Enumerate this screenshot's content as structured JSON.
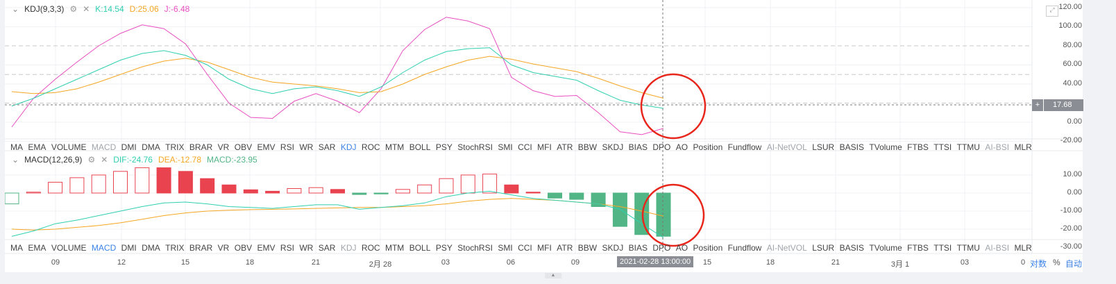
{
  "kdj": {
    "title": "KDJ(9,3,3)",
    "k": "K:14.54",
    "d": "D:25.06",
    "j": "J:-6.48",
    "current": "17.68",
    "y_ticks": [
      "120.00",
      "100.00",
      "80.00",
      "60.00",
      "40.00",
      "0.00",
      "-20.00"
    ],
    "K": [
      17,
      25,
      35,
      45,
      55,
      65,
      72,
      75,
      70,
      60,
      45,
      35,
      30,
      35,
      37,
      33,
      27,
      37,
      52,
      65,
      74,
      77,
      78,
      60,
      52,
      48,
      44,
      33,
      23,
      18,
      14.54
    ],
    "D": [
      32,
      30,
      31,
      35,
      42,
      50,
      58,
      64,
      67,
      63,
      55,
      47,
      42,
      40,
      38,
      35,
      31,
      32,
      40,
      50,
      58,
      65,
      69,
      66,
      61,
      57,
      53,
      46,
      38,
      31,
      25.06
    ],
    "J": [
      -5,
      25,
      45,
      63,
      80,
      93,
      102,
      98,
      82,
      50,
      20,
      5,
      4,
      22,
      30,
      22,
      10,
      35,
      75,
      97,
      110,
      106,
      98,
      47,
      33,
      27,
      28,
      10,
      -10,
      -13,
      -6.48
    ],
    "levels": [
      80,
      50,
      20
    ]
  },
  "macd": {
    "title": "MACD(12,26,9)",
    "dif": "DIF:-24.76",
    "dea": "DEA:-12.78",
    "macd": "MACD:-23.95",
    "y_ticks": [
      "10.00",
      "0.00",
      "-10.00",
      "-20.00",
      "-30.00"
    ],
    "hist": [
      -6,
      0.5,
      6,
      8.5,
      10,
      12,
      14,
      14,
      12,
      8,
      4.5,
      1.8,
      1,
      2.5,
      3,
      2,
      -0.8,
      -0.5,
      2,
      4.5,
      8,
      10,
      10.5,
      4.5,
      0.5,
      -2.8,
      -3.5,
      -7.5,
      -18.5,
      -23,
      -23.95
    ],
    "DIF": [
      -24,
      -21,
      -17,
      -15,
      -12.5,
      -10,
      -7.5,
      -5.5,
      -5,
      -6,
      -7.5,
      -8,
      -8.5,
      -7.5,
      -6.5,
      -6.5,
      -9,
      -8,
      -7,
      -5.5,
      -2,
      0,
      1,
      -1,
      -3,
      -4,
      -5,
      -6,
      -9,
      -17,
      -24.76
    ],
    "DEA": [
      -20,
      -20.5,
      -20,
      -19,
      -18,
      -16.5,
      -14.5,
      -12.5,
      -11,
      -10,
      -9.5,
      -9.2,
      -9,
      -8.8,
      -8.5,
      -8.2,
      -8,
      -8,
      -7.5,
      -7,
      -6,
      -4.5,
      -3.5,
      -3,
      -3.5,
      -4,
      -5,
      -6,
      -7.5,
      -10,
      -12.78
    ]
  },
  "indicators": [
    "MA",
    "EMA",
    "VOLUME",
    "MACD",
    "DMI",
    "DMA",
    "TRIX",
    "BRAR",
    "VR",
    "OBV",
    "EMV",
    "RSI",
    "WR",
    "SAR",
    "KDJ",
    "ROC",
    "MTM",
    "BOLL",
    "PSY",
    "StochRSI",
    "SMI",
    "CCI",
    "MFI",
    "ATR",
    "BBW",
    "SKDJ",
    "BIAS",
    "DPO",
    "AO",
    "Position",
    "Fundflow",
    "AI-NetVOL",
    "LSUR",
    "BASIS",
    "TVolume",
    "FTBS",
    "TTSI",
    "TTMU",
    "AI-BSI",
    "MLR"
  ],
  "time_axis": [
    "09",
    "12",
    "15",
    "18",
    "21",
    "2月 28",
    "03",
    "06",
    "09",
    "15",
    "18",
    "21",
    "3月 1",
    "03",
    "0"
  ],
  "crosshair_time": "2021-02-28 13:00:00",
  "scale_options": {
    "log": "对数",
    "percent": "%",
    "auto": "自动"
  },
  "colors": {
    "k": "#2fcfb0",
    "d": "#f5a623",
    "j": "#e84fc0",
    "up": "#e8434f",
    "down": "#52b586",
    "accent": "#3a82e6",
    "annotation": "#e8261c"
  }
}
